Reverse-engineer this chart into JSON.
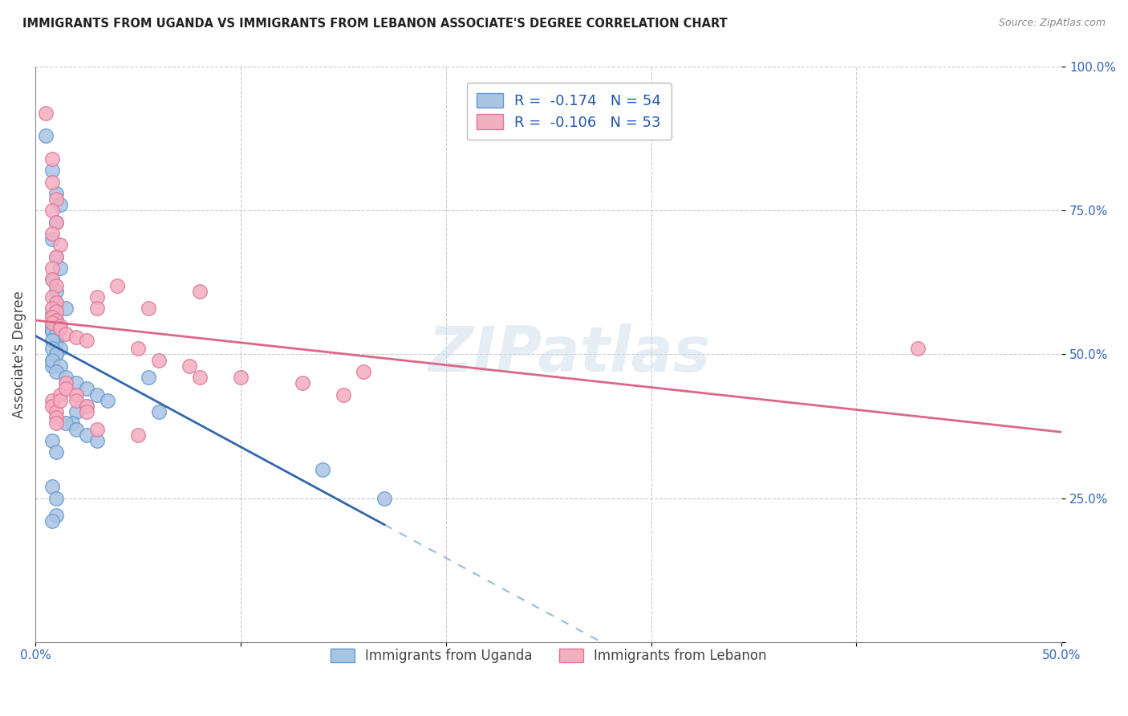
{
  "title": "IMMIGRANTS FROM UGANDA VS IMMIGRANTS FROM LEBANON ASSOCIATE'S DEGREE CORRELATION CHART",
  "source": "Source: ZipAtlas.com",
  "ylabel": "Associate's Degree",
  "uganda_color": "#aac4e4",
  "lebanon_color": "#f5adc0",
  "uganda_edge_color": "#6699cc",
  "lebanon_edge_color": "#dd7799",
  "uganda_line_color": "#3366aa",
  "lebanon_line_color": "#dd6688",
  "uganda_dash_color": "#99bbdd",
  "R_uganda": -0.174,
  "N_uganda": 54,
  "R_lebanon": -0.106,
  "N_lebanon": 53,
  "watermark": "ZIPatlas",
  "legend_label_uganda": "Immigrants from Uganda",
  "legend_label_lebanon": "Immigrants from Lebanon",
  "xlim": [
    0.0,
    0.5
  ],
  "ylim": [
    0.0,
    1.0
  ],
  "uganda_x": [
    0.005,
    0.008,
    0.01,
    0.012,
    0.01,
    0.008,
    0.01,
    0.012,
    0.008,
    0.01,
    0.01,
    0.015,
    0.008,
    0.01,
    0.008,
    0.008,
    0.01,
    0.01,
    0.012,
    0.01,
    0.008,
    0.008,
    0.01,
    0.008,
    0.008,
    0.01,
    0.008,
    0.008,
    0.01,
    0.008,
    0.012,
    0.01,
    0.015,
    0.02,
    0.025,
    0.03,
    0.025,
    0.035,
    0.02,
    0.018,
    0.008,
    0.01,
    0.015,
    0.02,
    0.025,
    0.03,
    0.055,
    0.06,
    0.008,
    0.01,
    0.01,
    0.008,
    0.17,
    0.14
  ],
  "uganda_y": [
    0.88,
    0.82,
    0.78,
    0.76,
    0.73,
    0.7,
    0.67,
    0.65,
    0.63,
    0.61,
    0.59,
    0.58,
    0.57,
    0.56,
    0.55,
    0.54,
    0.53,
    0.52,
    0.51,
    0.5,
    0.49,
    0.48,
    0.56,
    0.545,
    0.54,
    0.535,
    0.525,
    0.51,
    0.5,
    0.49,
    0.48,
    0.47,
    0.46,
    0.45,
    0.44,
    0.43,
    0.41,
    0.42,
    0.4,
    0.38,
    0.35,
    0.33,
    0.38,
    0.37,
    0.36,
    0.35,
    0.46,
    0.4,
    0.27,
    0.25,
    0.22,
    0.21,
    0.25,
    0.3
  ],
  "lebanon_x": [
    0.005,
    0.008,
    0.008,
    0.01,
    0.008,
    0.01,
    0.008,
    0.012,
    0.01,
    0.008,
    0.008,
    0.01,
    0.008,
    0.01,
    0.008,
    0.01,
    0.008,
    0.01,
    0.008,
    0.012,
    0.012,
    0.015,
    0.02,
    0.025,
    0.03,
    0.03,
    0.04,
    0.055,
    0.05,
    0.06,
    0.075,
    0.08,
    0.08,
    0.1,
    0.13,
    0.16,
    0.15,
    0.008,
    0.008,
    0.01,
    0.01,
    0.01,
    0.012,
    0.012,
    0.015,
    0.015,
    0.02,
    0.02,
    0.025,
    0.025,
    0.03,
    0.43,
    0.05
  ],
  "lebanon_y": [
    0.92,
    0.84,
    0.8,
    0.77,
    0.75,
    0.73,
    0.71,
    0.69,
    0.67,
    0.65,
    0.63,
    0.62,
    0.6,
    0.59,
    0.58,
    0.575,
    0.565,
    0.56,
    0.555,
    0.55,
    0.545,
    0.535,
    0.53,
    0.525,
    0.6,
    0.58,
    0.62,
    0.58,
    0.51,
    0.49,
    0.48,
    0.61,
    0.46,
    0.46,
    0.45,
    0.47,
    0.43,
    0.42,
    0.41,
    0.4,
    0.39,
    0.38,
    0.43,
    0.42,
    0.45,
    0.44,
    0.43,
    0.42,
    0.41,
    0.4,
    0.37,
    0.51,
    0.36
  ]
}
